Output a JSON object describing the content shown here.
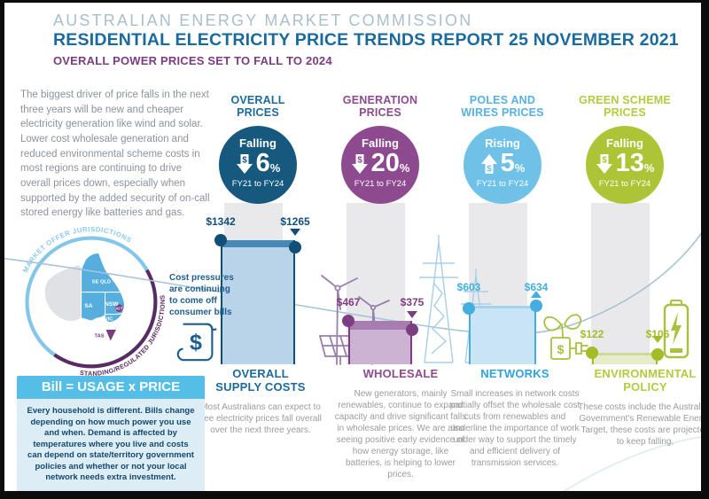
{
  "header": {
    "org": "AUSTRALIAN ENERGY MARKET COMMISSION",
    "title": "RESIDENTIAL ELECTRICITY PRICE TRENDS REPORT 25 NOVEMBER 2021",
    "subtitle": "OVERALL POWER PRICES SET TO FALL TO 2024"
  },
  "intro": "The biggest driver of price falls in the next three years will be new and cheaper electricity generation like wind and solar. Lower cost wholesale generation and reduced environmental scheme costs in most regions are continuing to drive overall prices down, especially when supported by the added security of on-call stored energy like batteries and gas.",
  "map": {
    "arc_label_top": "MARKET OFFER JURISDICTIONS",
    "arc_label_bottom": "STANDING/REGULATED JURISDICTIONS",
    "regions": [
      "SE QLD",
      "SA",
      "NSW",
      "ACT",
      "VIC",
      "TAS"
    ]
  },
  "note": "Cost pressures are continuing to come off consumer bills",
  "bill_box": {
    "title": "Bill = USAGE x PRICE",
    "body": "Every household is different. Bills change depending on how much power you use and when. Demand is affected by temperatures where you live and costs can depend on state/territory government policies and whether or not your local network needs extra investment."
  },
  "ui": {
    "percent_sign": "%",
    "dollar_sign": "$"
  },
  "chart_data": {
    "type": "bar",
    "x": [
      "FY21",
      "FY24"
    ],
    "columns": [
      {
        "title": "OVERALL PRICES",
        "direction": "Falling",
        "percent": "6",
        "period": "FY21 to FY24",
        "fy21": 1342,
        "fy24": 1265,
        "fy21_label": "$1342",
        "fy24_label": "$1265",
        "icon": "dollar-down-arrow-icon",
        "section_title": "OVERALL SUPPLY COSTS",
        "section_text": "Most Australians can expect to see electricity prices fall overall over the next three years.",
        "colors": {
          "title": "#1d6a9c",
          "circle": "#17587e",
          "dark": "#124f77",
          "band": "#4688b6",
          "fill": "#b9d3e9",
          "section": "#1d6a9c"
        }
      },
      {
        "title": "GENERATION PRICES",
        "direction": "Falling",
        "percent": "20",
        "period": "FY21 to FY24",
        "fy21": 467,
        "fy24": 375,
        "fy21_label": "$467",
        "fy24_label": "$375",
        "icon": "dollar-down-arrow-icon",
        "section_title": "WHOLESALE",
        "section_text": "New generators, mainly renewables, continue to expand capacity and drive significant falls in wholesale prices. We are also seeing positive early evidence of how energy storage, like batteries, is helping to lower prices.",
        "colors": {
          "title": "#8d4a8f",
          "circle": "#8d4a8f",
          "dark": "#7d3e81",
          "band": "#a87cb0",
          "fill": "#cdb3d3",
          "section": "#8d4a8f"
        }
      },
      {
        "title": "POLES AND WIRES PRICES",
        "direction": "Rising",
        "percent": "5",
        "period": "FY21 to FY24",
        "fy21": 603,
        "fy24": 634,
        "fy21_label": "$603",
        "fy24_label": "$634",
        "icon": "dollar-up-arrow-icon",
        "section_title": "NETWORKS",
        "section_text": "Small increases in network costs partially offset the wholesale cost cuts from renewables and underline the importance of work under way to support the timely and efficient delivery of transmission services.",
        "colors": {
          "title": "#56b0e0",
          "circle": "#6fc1e7",
          "dark": "#45aee0",
          "band": "#a5d3ef",
          "fill": "#c8e4f5",
          "section": "#2ea3dc"
        }
      },
      {
        "title": "GREEN SCHEME PRICES",
        "direction": "Falling",
        "percent": "13",
        "period": "FY21 to FY24",
        "fy21": 122,
        "fy24": 106,
        "fy21_label": "$122",
        "fy24_label": "$106",
        "icon": "dollar-down-arrow-icon",
        "section_title": "ENVIRONMENTAL POLICY",
        "section_text": "These costs include the Australian Government's Renewable Energy Target, these costs are projected to keep falling.",
        "colors": {
          "title": "#b4ca3f",
          "circle": "#aec437",
          "dark": "#a2bd27",
          "band": "#ccdb96",
          "fill": "#e6ecca",
          "section": "#b4ca3f"
        }
      }
    ]
  },
  "icons": [
    "bill-scroll-icon",
    "wind-turbines-solar-icon",
    "transmission-towers-icon",
    "plant-plug-icon",
    "battery-icon",
    "dollar-down-arrow-icon",
    "dollar-up-arrow-icon"
  ],
  "palette": {
    "header_org": "#a9bfcb",
    "header_title": "#1b6a9e",
    "header_subtitle": "#7b3d80",
    "body_text": "#8d929b",
    "sec_text": "#9b9ca1",
    "note_text": "#1d5e8c",
    "bill_header_bg": "#54bee7",
    "bill_body_bg": "#dcedf6",
    "bill_text": "#14486e",
    "band_bg": "#e9e9ec",
    "curve": "#a6c4d6",
    "map_ring": "#82c6e9",
    "map_arc": "#5c2a62",
    "map_state": "#56aede",
    "map_gray": "#e0e1e4",
    "map_purple": "#7b3d80",
    "arc_text_top": "#8fc9e9",
    "icon_navy": "#1d5e8c",
    "icon_purple": "#9a7fae",
    "icon_blue": "#a8cfe7",
    "icon_green": "#a9c13f"
  }
}
